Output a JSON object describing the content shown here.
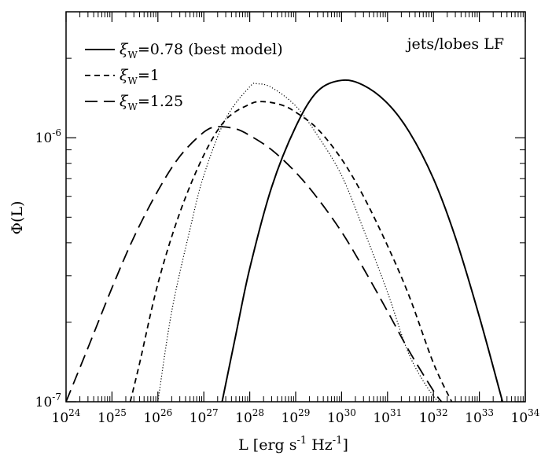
{
  "chart_data": {
    "type": "line",
    "title": "",
    "annotation": "jets/lobes LF",
    "xlabel": {
      "main": "L [erg s",
      "sup1": "-1",
      "mid": " Hz",
      "sup2": "-1",
      "end": "]"
    },
    "ylabel": "Φ(L)",
    "xscale": "log",
    "yscale": "log",
    "xlim": [
      1e+24,
      1e+34
    ],
    "ylim": [
      1e-07,
      3e-06
    ],
    "x_ticks": [
      {
        "base": "10",
        "exp": "24",
        "value": 1e+24
      },
      {
        "base": "10",
        "exp": "25",
        "value": 1e+25
      },
      {
        "base": "10",
        "exp": "26",
        "value": 1e+26
      },
      {
        "base": "10",
        "exp": "27",
        "value": 1e+27
      },
      {
        "base": "10",
        "exp": "28",
        "value": 1e+28
      },
      {
        "base": "10",
        "exp": "29",
        "value": 1e+29
      },
      {
        "base": "10",
        "exp": "30",
        "value": 1e+30
      },
      {
        "base": "10",
        "exp": "31",
        "value": 1e+31
      },
      {
        "base": "10",
        "exp": "32",
        "value": 1e+32
      },
      {
        "base": "10",
        "exp": "33",
        "value": 1e+33
      },
      {
        "base": "10",
        "exp": "34",
        "value": 1e+34
      }
    ],
    "y_ticks": [
      {
        "base": "10",
        "exp": "-7",
        "value": 1e-07
      },
      {
        "base": "10",
        "exp": "-6",
        "value": 1e-06
      }
    ],
    "legend_position": "top-left",
    "series": [
      {
        "name": "0.78 (best model)",
        "legend_symbol": "ξ",
        "legend_sub": "W",
        "legend_value": "=0.78 (best model)",
        "style": "solid",
        "x": [
          2.5e+27,
          5e+27,
          1e+28,
          3e+28,
          1e+29,
          3e+29,
          1e+30,
          3e+30,
          1e+31,
          3e+31,
          1e+32,
          3e+32,
          1e+33,
          3.2e+33
        ],
        "y": [
          1e-07,
          1.8e-07,
          3.2e-07,
          6.5e-07,
          1.1e-06,
          1.5e-06,
          1.65e-06,
          1.58e-06,
          1.35e-06,
          1.05e-06,
          7e-07,
          4.2e-07,
          2.1e-07,
          1e-07
        ]
      },
      {
        "name": "1",
        "legend_symbol": "ξ",
        "legend_sub": "W",
        "legend_value": "=1",
        "style": "dashed",
        "x": [
          2.5e+25,
          4e+25,
          1e+26,
          3e+26,
          1e+27,
          3e+27,
          1e+28,
          2e+28,
          5e+28,
          1e+29,
          3e+29,
          1e+30,
          3e+30,
          1e+31,
          3e+31,
          1e+32,
          2.5e+32
        ],
        "y": [
          1e-07,
          1.4e-07,
          2.8e-07,
          5.2e-07,
          8.6e-07,
          1.17e-06,
          1.34e-06,
          1.37e-06,
          1.33e-06,
          1.25e-06,
          1.08e-06,
          8.3e-07,
          6e-07,
          3.9e-07,
          2.5e-07,
          1.4e-07,
          1e-07
        ]
      },
      {
        "name": "1.25",
        "legend_symbol": "ξ",
        "legend_sub": "W",
        "legend_value": "=1.25",
        "style": "long-dashed",
        "x": [
          1e+24,
          3e+24,
          1e+25,
          3e+25,
          1e+26,
          3e+26,
          1e+27,
          2e+27,
          5e+27,
          1e+28,
          3e+28,
          1e+29,
          3e+29,
          1e+30,
          3e+30,
          1e+31,
          3e+31,
          1e+32,
          1.5e+32
        ],
        "y": [
          1e-07,
          1.6e-07,
          2.7e-07,
          4.2e-07,
          6.3e-07,
          8.5e-07,
          1.05e-06,
          1.1e-06,
          1.08e-06,
          1.02e-06,
          9e-07,
          7.4e-07,
          5.9e-07,
          4.4e-07,
          3.2e-07,
          2.2e-07,
          1.55e-07,
          1.1e-07,
          1e-07
        ]
      },
      {
        "name": "",
        "style": "dotted",
        "x": [
          1e+26,
          2e+26,
          5e+26,
          1e+27,
          3e+27,
          1e+28,
          1.5e+28,
          3e+28,
          1e+29,
          3e+29,
          1e+30,
          3e+30,
          1e+31,
          3e+31,
          1e+32,
          1.6e+32
        ],
        "y": [
          1e-07,
          2.2e-07,
          4.5e-07,
          7.2e-07,
          1.18e-06,
          1.56e-06,
          1.6e-06,
          1.55e-06,
          1.32e-06,
          1.02e-06,
          7.2e-07,
          4.5e-07,
          2.6e-07,
          1.5e-07,
          1.05e-07,
          1e-07
        ]
      }
    ]
  }
}
